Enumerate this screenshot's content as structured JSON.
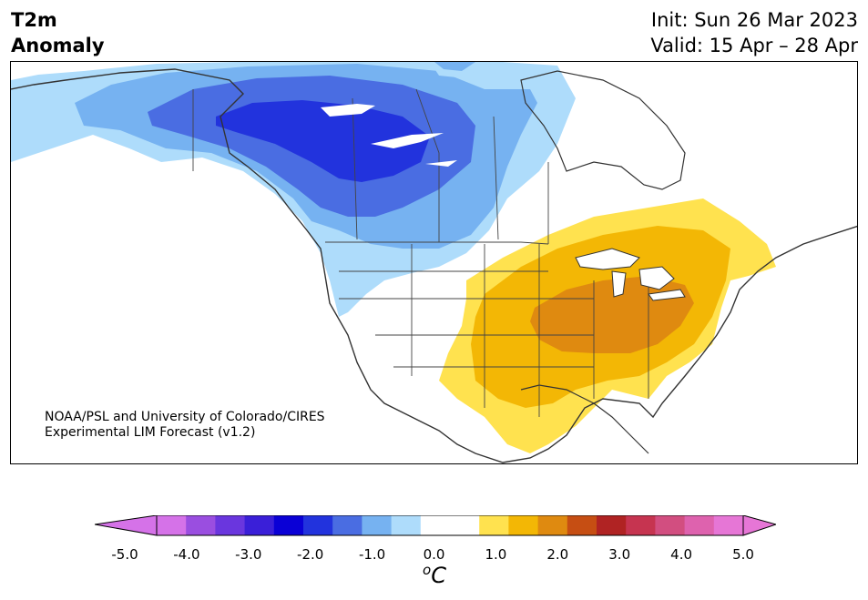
{
  "header": {
    "title_line1": "T2m",
    "title_line2": "Anomaly",
    "init": "Init: Sun 26 Mar 2023",
    "valid": "Valid: 15 Apr – 28 Apr"
  },
  "credit": {
    "line1": "NOAA/PSL and University of Colorado/CIRES",
    "line2": "Experimental LIM Forecast (v1.2)"
  },
  "colorbar": {
    "unit_base": "C",
    "unit_sup": "o",
    "ticks": [
      "-5.0",
      "-4.0",
      "-3.0",
      "-2.0",
      "-1.0",
      "0.0",
      "1.0",
      "2.0",
      "3.0",
      "4.0",
      "5.0"
    ],
    "colors": [
      "#d572e8",
      "#9a4ee0",
      "#6a36de",
      "#3a1fd8",
      "#0a00d6",
      "#2233dd",
      "#4a6de2",
      "#76b2f1",
      "#aedcfb",
      "#ffffff",
      "#ffffff",
      "#ffe24f",
      "#f3b705",
      "#df8a10",
      "#c64e13",
      "#b02323",
      "#c63450",
      "#d24e80",
      "#de62ae",
      "#e676d6"
    ],
    "extend_min_color": "#d572e8",
    "extend_max_color": "#e676d6"
  },
  "map": {
    "region": "North America",
    "variable": "2 m temperature anomaly"
  }
}
